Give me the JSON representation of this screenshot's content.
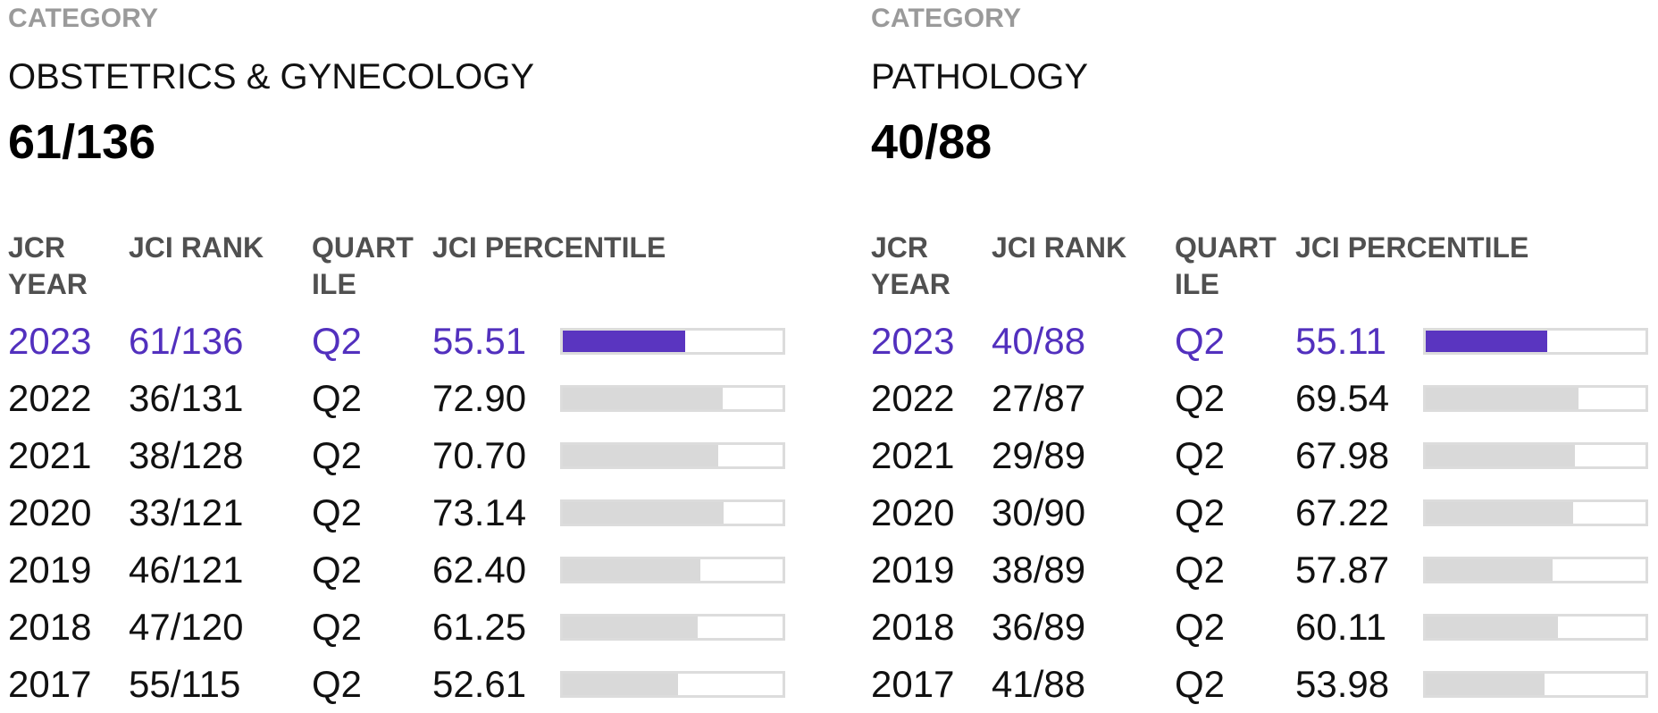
{
  "colors": {
    "accent": "#5a35c0",
    "accent_text": "#5230be",
    "bar_track": "#d9d9d9",
    "label_gray": "#9a9a9a",
    "header_gray": "#505050"
  },
  "headers": {
    "year": "JCR YEAR",
    "rank": "JCI RANK",
    "quartile": "QUART ILE",
    "percentile": "JCI PERCENTILE"
  },
  "panels": [
    {
      "category_label": "CATEGORY",
      "category_name": "OBSTETRICS & GYNECOLOGY",
      "rank": "61/136",
      "rows": [
        {
          "year": "2023",
          "rank": "61/136",
          "quartile": "Q2",
          "percentile": "55.51",
          "current": true
        },
        {
          "year": "2022",
          "rank": "36/131",
          "quartile": "Q2",
          "percentile": "72.90",
          "current": false
        },
        {
          "year": "2021",
          "rank": "38/128",
          "quartile": "Q2",
          "percentile": "70.70",
          "current": false
        },
        {
          "year": "2020",
          "rank": "33/121",
          "quartile": "Q2",
          "percentile": "73.14",
          "current": false
        },
        {
          "year": "2019",
          "rank": "46/121",
          "quartile": "Q2",
          "percentile": "62.40",
          "current": false
        },
        {
          "year": "2018",
          "rank": "47/120",
          "quartile": "Q2",
          "percentile": "61.25",
          "current": false
        },
        {
          "year": "2017",
          "rank": "55/115",
          "quartile": "Q2",
          "percentile": "52.61",
          "current": false
        }
      ]
    },
    {
      "category_label": "CATEGORY",
      "category_name": "PATHOLOGY",
      "rank": "40/88",
      "rows": [
        {
          "year": "2023",
          "rank": "40/88",
          "quartile": "Q2",
          "percentile": "55.11",
          "current": true
        },
        {
          "year": "2022",
          "rank": "27/87",
          "quartile": "Q2",
          "percentile": "69.54",
          "current": false
        },
        {
          "year": "2021",
          "rank": "29/89",
          "quartile": "Q2",
          "percentile": "67.98",
          "current": false
        },
        {
          "year": "2020",
          "rank": "30/90",
          "quartile": "Q2",
          "percentile": "67.22",
          "current": false
        },
        {
          "year": "2019",
          "rank": "38/89",
          "quartile": "Q2",
          "percentile": "57.87",
          "current": false
        },
        {
          "year": "2018",
          "rank": "36/89",
          "quartile": "Q2",
          "percentile": "60.11",
          "current": false
        },
        {
          "year": "2017",
          "rank": "41/88",
          "quartile": "Q2",
          "percentile": "53.98",
          "current": false
        }
      ]
    }
  ]
}
